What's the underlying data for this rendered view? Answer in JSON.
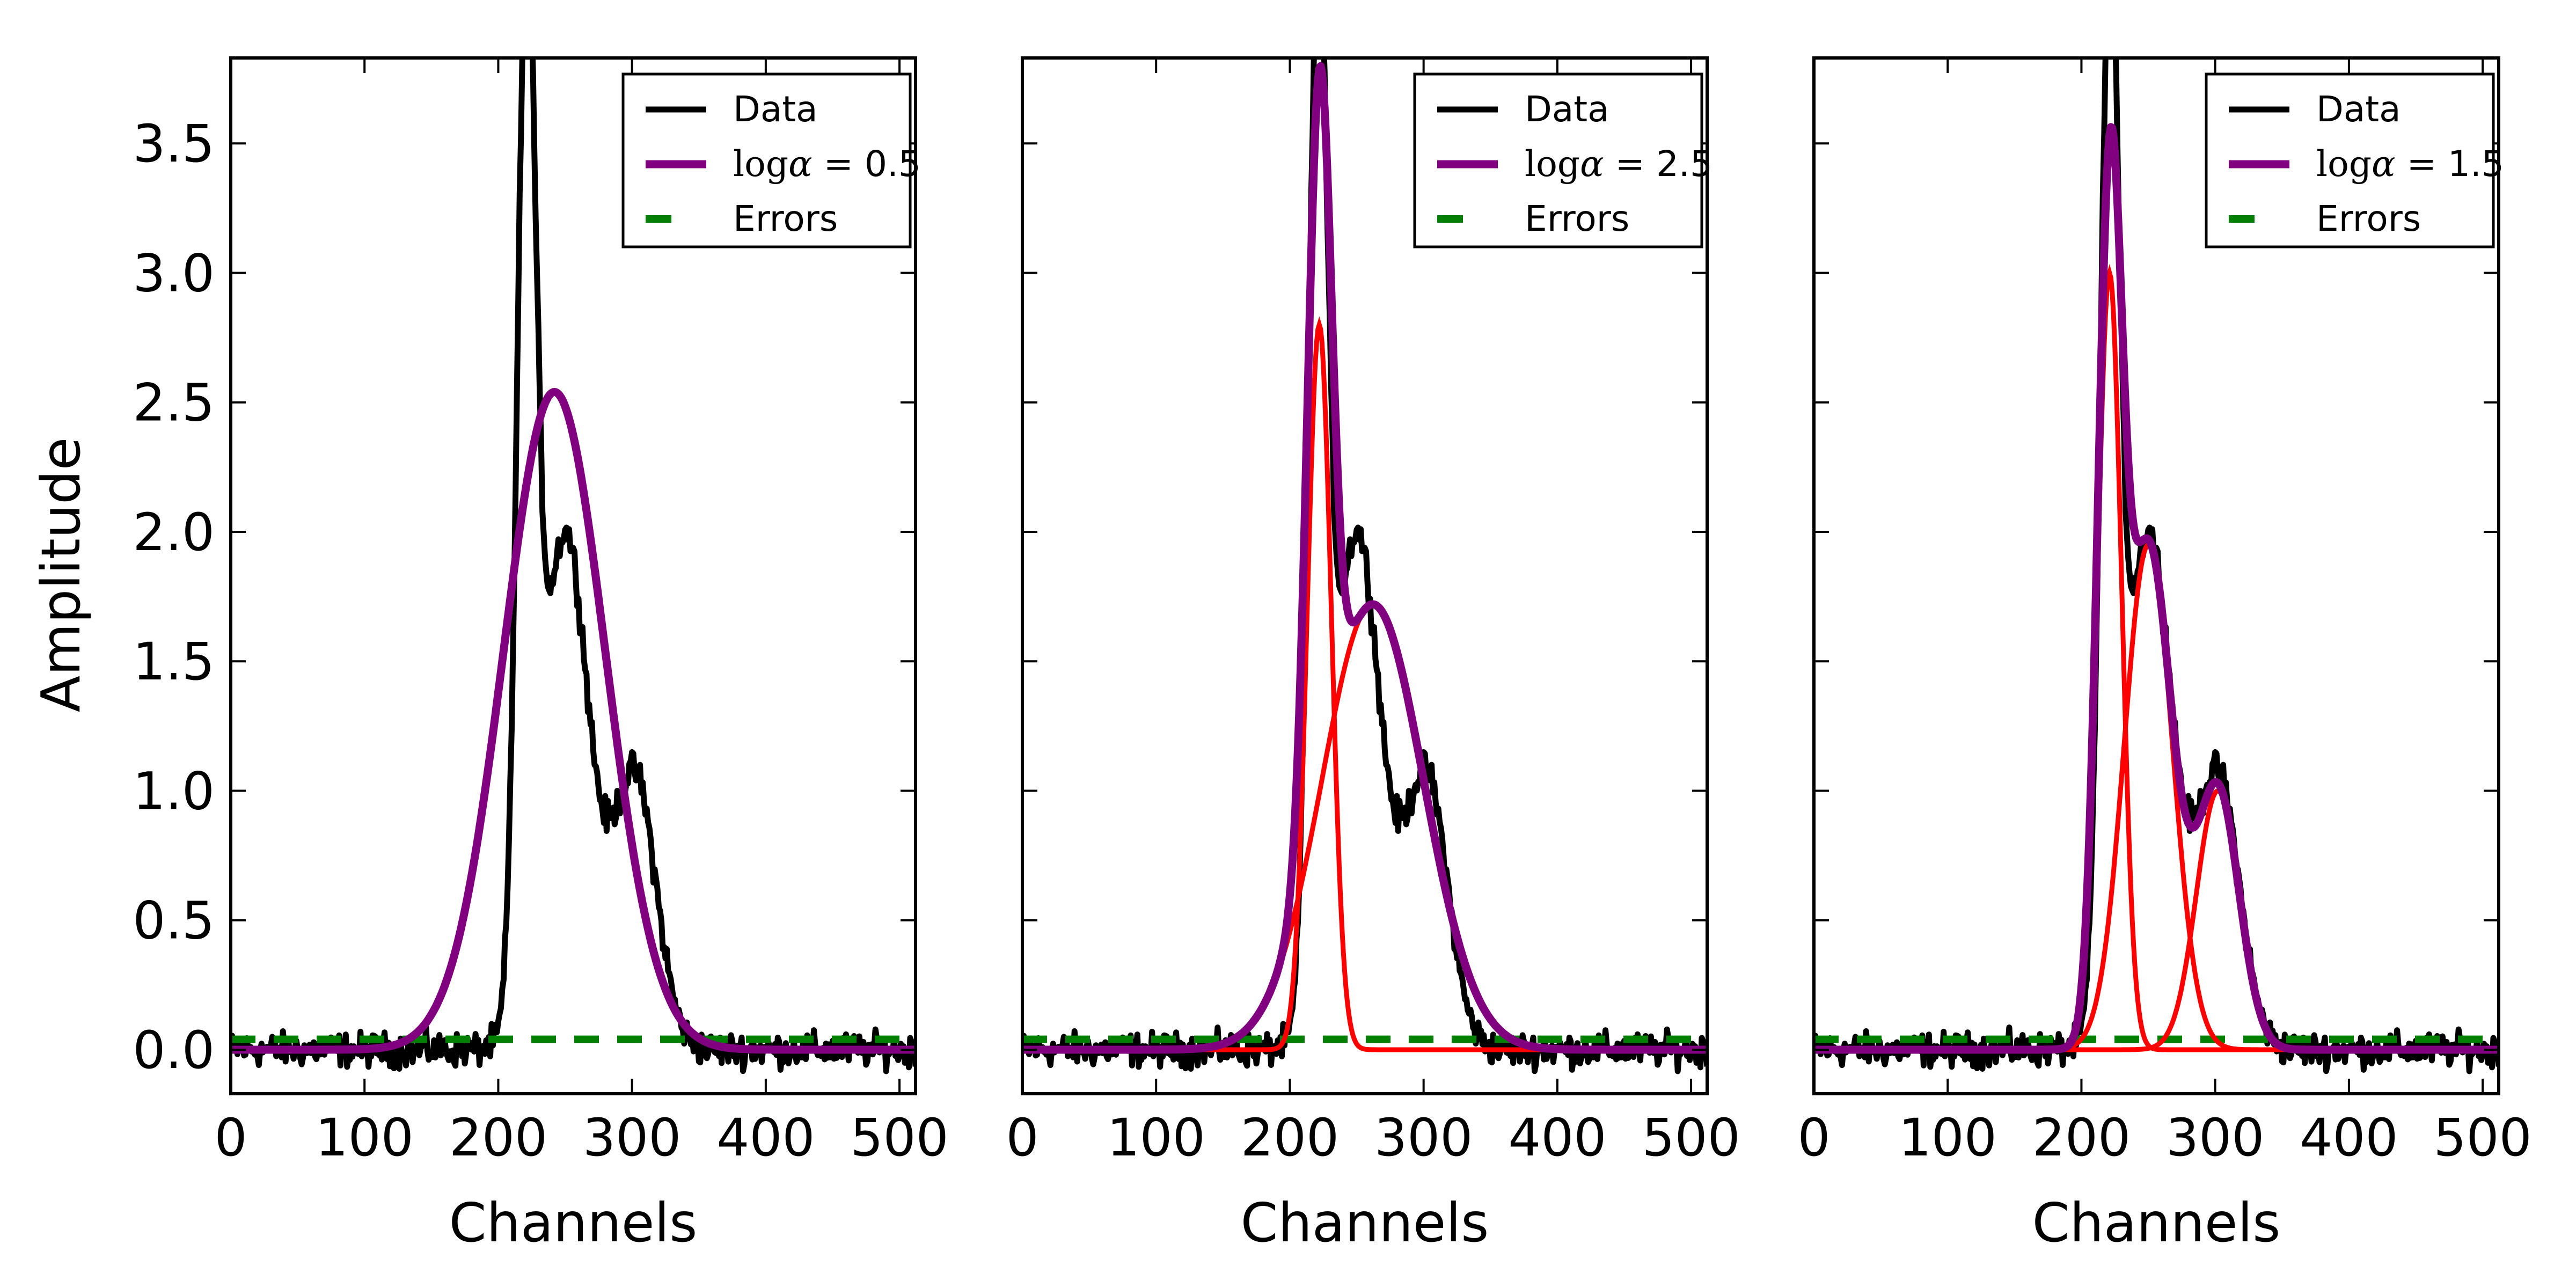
{
  "colors": {
    "data": "#000000",
    "fit": "#800080",
    "components": "#ff0000",
    "errors": "#008000"
  },
  "chart_data": [
    {
      "type": "line",
      "xlabel": "Channels",
      "ylabel": "Amplitude",
      "xlim": [
        0,
        512
      ],
      "ylim": [
        -0.17,
        3.83
      ],
      "xticks": [
        "0",
        "100",
        "200",
        "300",
        "400",
        "500"
      ],
      "yticks": [
        "0.0",
        "0.5",
        "1.0",
        "1.5",
        "2.0",
        "2.5",
        "3.0",
        "3.5"
      ],
      "legend_position": "top-right",
      "legend": {
        "data": "Data",
        "fit_prefix": "log",
        "fit_symbol": "α",
        "fit_eq": " = ",
        "fit_value": "0.5",
        "errors": "Errors"
      },
      "errors_level": 0.04,
      "components": [],
      "fit_components": [
        {
          "amp": 2.54,
          "mu": 242,
          "sigma": 38
        }
      ]
    },
    {
      "type": "line",
      "xlabel": "Channels",
      "ylabel": "",
      "xlim": [
        0,
        512
      ],
      "ylim": [
        -0.17,
        3.83
      ],
      "xticks": [
        "0",
        "100",
        "200",
        "300",
        "400",
        "500"
      ],
      "yticks": [],
      "legend_position": "top-right",
      "legend": {
        "data": "Data",
        "fit_prefix": "log",
        "fit_symbol": "α",
        "fit_eq": " = ",
        "fit_value": "2.5",
        "errors": "Errors"
      },
      "errors_level": 0.04,
      "components": [
        {
          "amp": 2.8,
          "mu": 222,
          "sigma": 9
        },
        {
          "amp": 1.72,
          "mu": 262,
          "sigma": 38
        }
      ],
      "fit_components": [
        {
          "amp": 2.8,
          "mu": 222,
          "sigma": 9
        },
        {
          "amp": 1.72,
          "mu": 262,
          "sigma": 38
        }
      ]
    },
    {
      "type": "line",
      "xlabel": "Channels",
      "ylabel": "",
      "xlim": [
        0,
        512
      ],
      "ylim": [
        -0.17,
        3.83
      ],
      "xticks": [
        "0",
        "100",
        "200",
        "300",
        "400",
        "500"
      ],
      "yticks": [],
      "legend_position": "top-right",
      "legend": {
        "data": "Data",
        "fit_prefix": "log",
        "fit_symbol": "α",
        "fit_eq": " = ",
        "fit_value": "1.5",
        "errors": "Errors"
      },
      "errors_level": 0.04,
      "components": [
        {
          "amp": 3.0,
          "mu": 221,
          "sigma": 9
        },
        {
          "amp": 1.95,
          "mu": 250,
          "sigma": 18
        },
        {
          "amp": 1.0,
          "mu": 302,
          "sigma": 16
        }
      ],
      "fit_components": [
        {
          "amp": 3.0,
          "mu": 221,
          "sigma": 9
        },
        {
          "amp": 1.95,
          "mu": 250,
          "sigma": 18
        },
        {
          "amp": 1.0,
          "mu": 302,
          "sigma": 16
        }
      ]
    }
  ],
  "data_components": [
    {
      "amp": 3.75,
      "mu": 221,
      "sigma": 7
    },
    {
      "amp": 2.0,
      "mu": 250,
      "sigma": 18
    },
    {
      "amp": 1.05,
      "mu": 302,
      "sigma": 16
    }
  ],
  "noise_amplitude": 0.04
}
